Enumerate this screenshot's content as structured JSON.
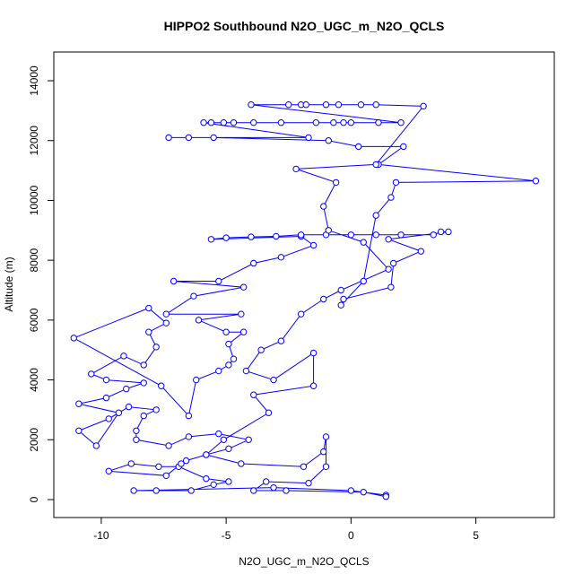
{
  "chart_data": {
    "type": "line",
    "title": "HIPPO2 Southbound N2O_UGC_m_N2O_QCLS",
    "x_label": "N2O_UGC_m_N2O_QCLS",
    "y_label": "Altitude (m)",
    "color": "#0000ff",
    "markers": true,
    "xlim": [
      -11.9,
      8.14
    ],
    "ylim": [
      -600,
      14960
    ],
    "xticks": [
      -10,
      -5,
      0,
      5
    ],
    "yticks": [
      0,
      2000,
      4000,
      6000,
      8000,
      10000,
      12000,
      14000
    ],
    "x": [
      1.4,
      0,
      -3.1,
      -8.7,
      -7.8,
      -6.4,
      -5.5,
      -4.9,
      -5.8,
      -6.9,
      -7.7,
      -8.8,
      -9.7,
      -7.4,
      -6.8,
      -6.6,
      -5.8,
      -4.9,
      -4.1,
      -5.3,
      -6.5,
      -7.3,
      -8.6,
      -8.6,
      -8.3,
      -7.8,
      -8.9,
      -9.7,
      -10.9,
      -10.2,
      -9.3,
      -10.9,
      -9.8,
      -9.0,
      -8.3,
      -9.8,
      -10.4,
      -9.1,
      -8.3,
      -7.8,
      -8.1,
      -7.4,
      -8.1,
      -11.1,
      -7.6,
      -6.5,
      -6.2,
      -5.3,
      -4.9,
      -4.7,
      -4.9,
      -4.3,
      -5.0,
      -6.1,
      -4.4,
      -7.4,
      -6.3,
      -4.3,
      -7.1,
      -5.3,
      -3.9,
      -2.8,
      -1.5,
      -2.0,
      -5.6,
      -5.0,
      -4.0,
      -3.0,
      -2.0,
      -1.0,
      0,
      1.0,
      2.0,
      3.3,
      3.6,
      3.9,
      1.5,
      2.8,
      1.7,
      1.6,
      -0.3,
      -0.4,
      0.5,
      1.0,
      1.6,
      1.8,
      7.4,
      1.1,
      2.1,
      0.3,
      -0.9,
      -5.5,
      -6.5,
      -7.3,
      -1.7,
      -5.9,
      -5.6,
      -5.1,
      -4.7,
      -3.9,
      -2.8,
      -1.4,
      -0.7,
      -0.3,
      0,
      1.1,
      2.0,
      -4.0,
      -2.5,
      -2.0,
      -1.8,
      -1.0,
      -0.5,
      0.4,
      1.0,
      2.9,
      1.0,
      -2.2,
      -0.6,
      -1.1,
      -0.9,
      0.5,
      1.5,
      -0.4,
      -1.1,
      -2.0,
      -2.8,
      -3.6,
      -4.2,
      -3.1,
      -1.5,
      -1.5,
      -3.9,
      -3.3,
      -5.1,
      -5.8,
      -4.4,
      -1.9,
      -1.1,
      -1.0,
      -1.0,
      -1.7,
      -3.4,
      -3.9,
      -2.6,
      0.5,
      1.4
    ],
    "values": [
      150,
      300,
      400,
      300,
      300,
      300,
      500,
      600,
      700,
      1100,
      1100,
      1200,
      950,
      800,
      1200,
      1300,
      1500,
      1700,
      2000,
      2200,
      2100,
      1800,
      2000,
      2300,
      2800,
      3000,
      3100,
      2700,
      2300,
      1800,
      2900,
      3200,
      3400,
      3700,
      3900,
      4000,
      4200,
      4800,
      4500,
      5100,
      5600,
      5900,
      6400,
      5400,
      3800,
      2800,
      4000,
      4300,
      4500,
      4700,
      5200,
      5600,
      5600,
      6000,
      6200,
      6200,
      6800,
      7100,
      7300,
      7300,
      7900,
      8100,
      8500,
      8800,
      8700,
      8750,
      8780,
      8800,
      8850,
      8850,
      8850,
      8850,
      8850,
      8850,
      8950,
      8950,
      8700,
      8300,
      7900,
      7100,
      6700,
      6500,
      7300,
      9500,
      10100,
      10600,
      10650,
      11200,
      11800,
      11800,
      12000,
      12100,
      12100,
      12100,
      12100,
      12600,
      12600,
      12600,
      12600,
      12600,
      12600,
      12600,
      12600,
      12600,
      12600,
      12600,
      12600,
      13200,
      13200,
      13200,
      13200,
      13200,
      13200,
      13200,
      13200,
      13150,
      11200,
      11050,
      10600,
      9800,
      9000,
      8600,
      7700,
      7000,
      6700,
      6200,
      5300,
      5000,
      4300,
      4000,
      4900,
      3800,
      3500,
      2900,
      2000,
      1500,
      1200,
      1100,
      1600,
      2100,
      1100,
      550,
      600,
      300,
      300,
      250,
      100
    ]
  }
}
